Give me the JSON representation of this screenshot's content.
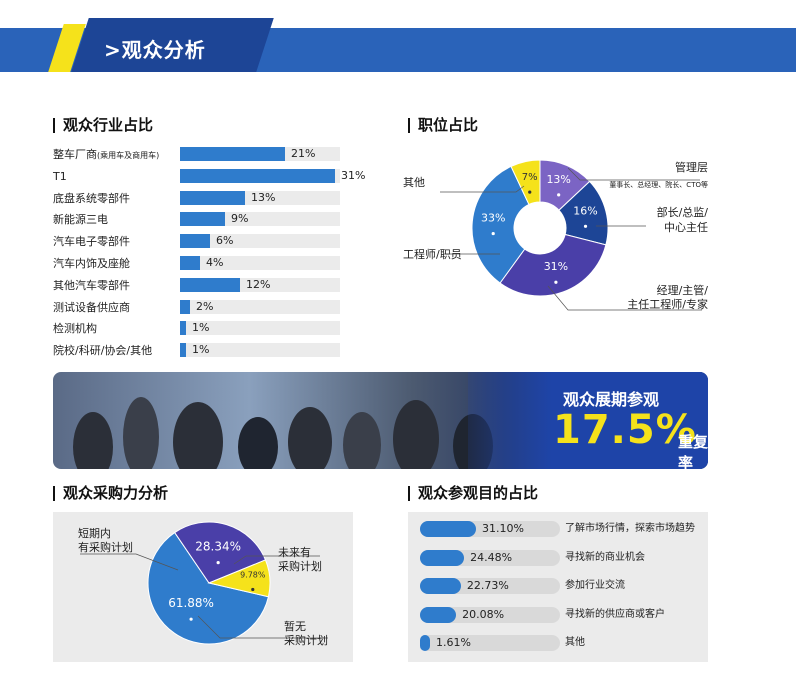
{
  "header": {
    "title": ">观众分析"
  },
  "industry": {
    "title": "观众行业占比",
    "items": [
      {
        "label": "整车厂商",
        "sub": "(乘用车及商用车)",
        "value": "21%",
        "pct": 21
      },
      {
        "label": "T1",
        "sub": "",
        "value": "31%",
        "pct": 31
      },
      {
        "label": "底盘系统零部件",
        "sub": "",
        "value": "13%",
        "pct": 13
      },
      {
        "label": "新能源三电",
        "sub": "",
        "value": "9%",
        "pct": 9
      },
      {
        "label": "汽车电子零部件",
        "sub": "",
        "value": "6%",
        "pct": 6
      },
      {
        "label": "汽车内饰及座舱",
        "sub": "",
        "value": "4%",
        "pct": 4
      },
      {
        "label": "其他汽车零部件",
        "sub": "",
        "value": "12%",
        "pct": 12
      },
      {
        "label": "测试设备供应商",
        "sub": "",
        "value": "2%",
        "pct": 2
      },
      {
        "label": "检测机构",
        "sub": "",
        "value": "1%",
        "pct": 1
      },
      {
        "label": "院校/科研/协会/其他",
        "sub": "",
        "value": "1%",
        "pct": 1
      }
    ]
  },
  "position": {
    "title": "职位占比",
    "labels": {
      "other": "其他",
      "engineer": "工程师/职员",
      "mgmt": "管理层",
      "mgmt_sub": "董事长、总经理、院长、CTO等",
      "director1": "部长/总监/",
      "director2": "中心主任",
      "manager1": "经理/主管/",
      "manager2": "主任工程师/专家"
    }
  },
  "repeat": {
    "caption": "观众展期参观",
    "percent": "17.5%",
    "suffix": "重复率"
  },
  "purchase": {
    "title": "观众采购力分析",
    "labels": {
      "short1": "短期内",
      "short2": "有采购计划",
      "future1": "未来有",
      "future2": "采购计划",
      "none1": "暂无",
      "none2": "采购计划"
    }
  },
  "purpose": {
    "title": "观众参观目的占比",
    "items": [
      {
        "value": "31.10%",
        "pct": 31.1,
        "label": "了解市场行情，探索市场趋势"
      },
      {
        "value": "24.48%",
        "pct": 24.48,
        "label": "寻找新的商业机会"
      },
      {
        "value": "22.73%",
        "pct": 22.73,
        "label": "参加行业交流"
      },
      {
        "value": "20.08%",
        "pct": 20.08,
        "label": "寻找新的供应商或客户"
      },
      {
        "value": "1.61%",
        "pct": 1.61,
        "label": "其他"
      }
    ]
  },
  "chart_data": [
    {
      "type": "pie",
      "title": "职位占比",
      "categories": [
        "管理层",
        "部长/总监/中心主任",
        "经理/主管/主任工程师/专家",
        "工程师/职员",
        "其他"
      ],
      "values": [
        13,
        16,
        31,
        33,
        7
      ],
      "labels": [
        "13%",
        "16%",
        "31%",
        "33%",
        "7%"
      ],
      "colors": [
        "#7b64c4",
        "#1d4596",
        "#4a3fa8",
        "#2f7ccc",
        "#f5e21b"
      ]
    },
    {
      "type": "pie",
      "title": "观众采购力分析",
      "categories": [
        "短期内有采购计划",
        "未来有采购计划",
        "暂无采购计划"
      ],
      "values": [
        61.88,
        28.34,
        9.78
      ],
      "labels": [
        "61.88%",
        "28.34%",
        "9.78%"
      ],
      "colors": [
        "#2f7ccc",
        "#4a3fa8",
        "#f5e21b"
      ]
    }
  ]
}
